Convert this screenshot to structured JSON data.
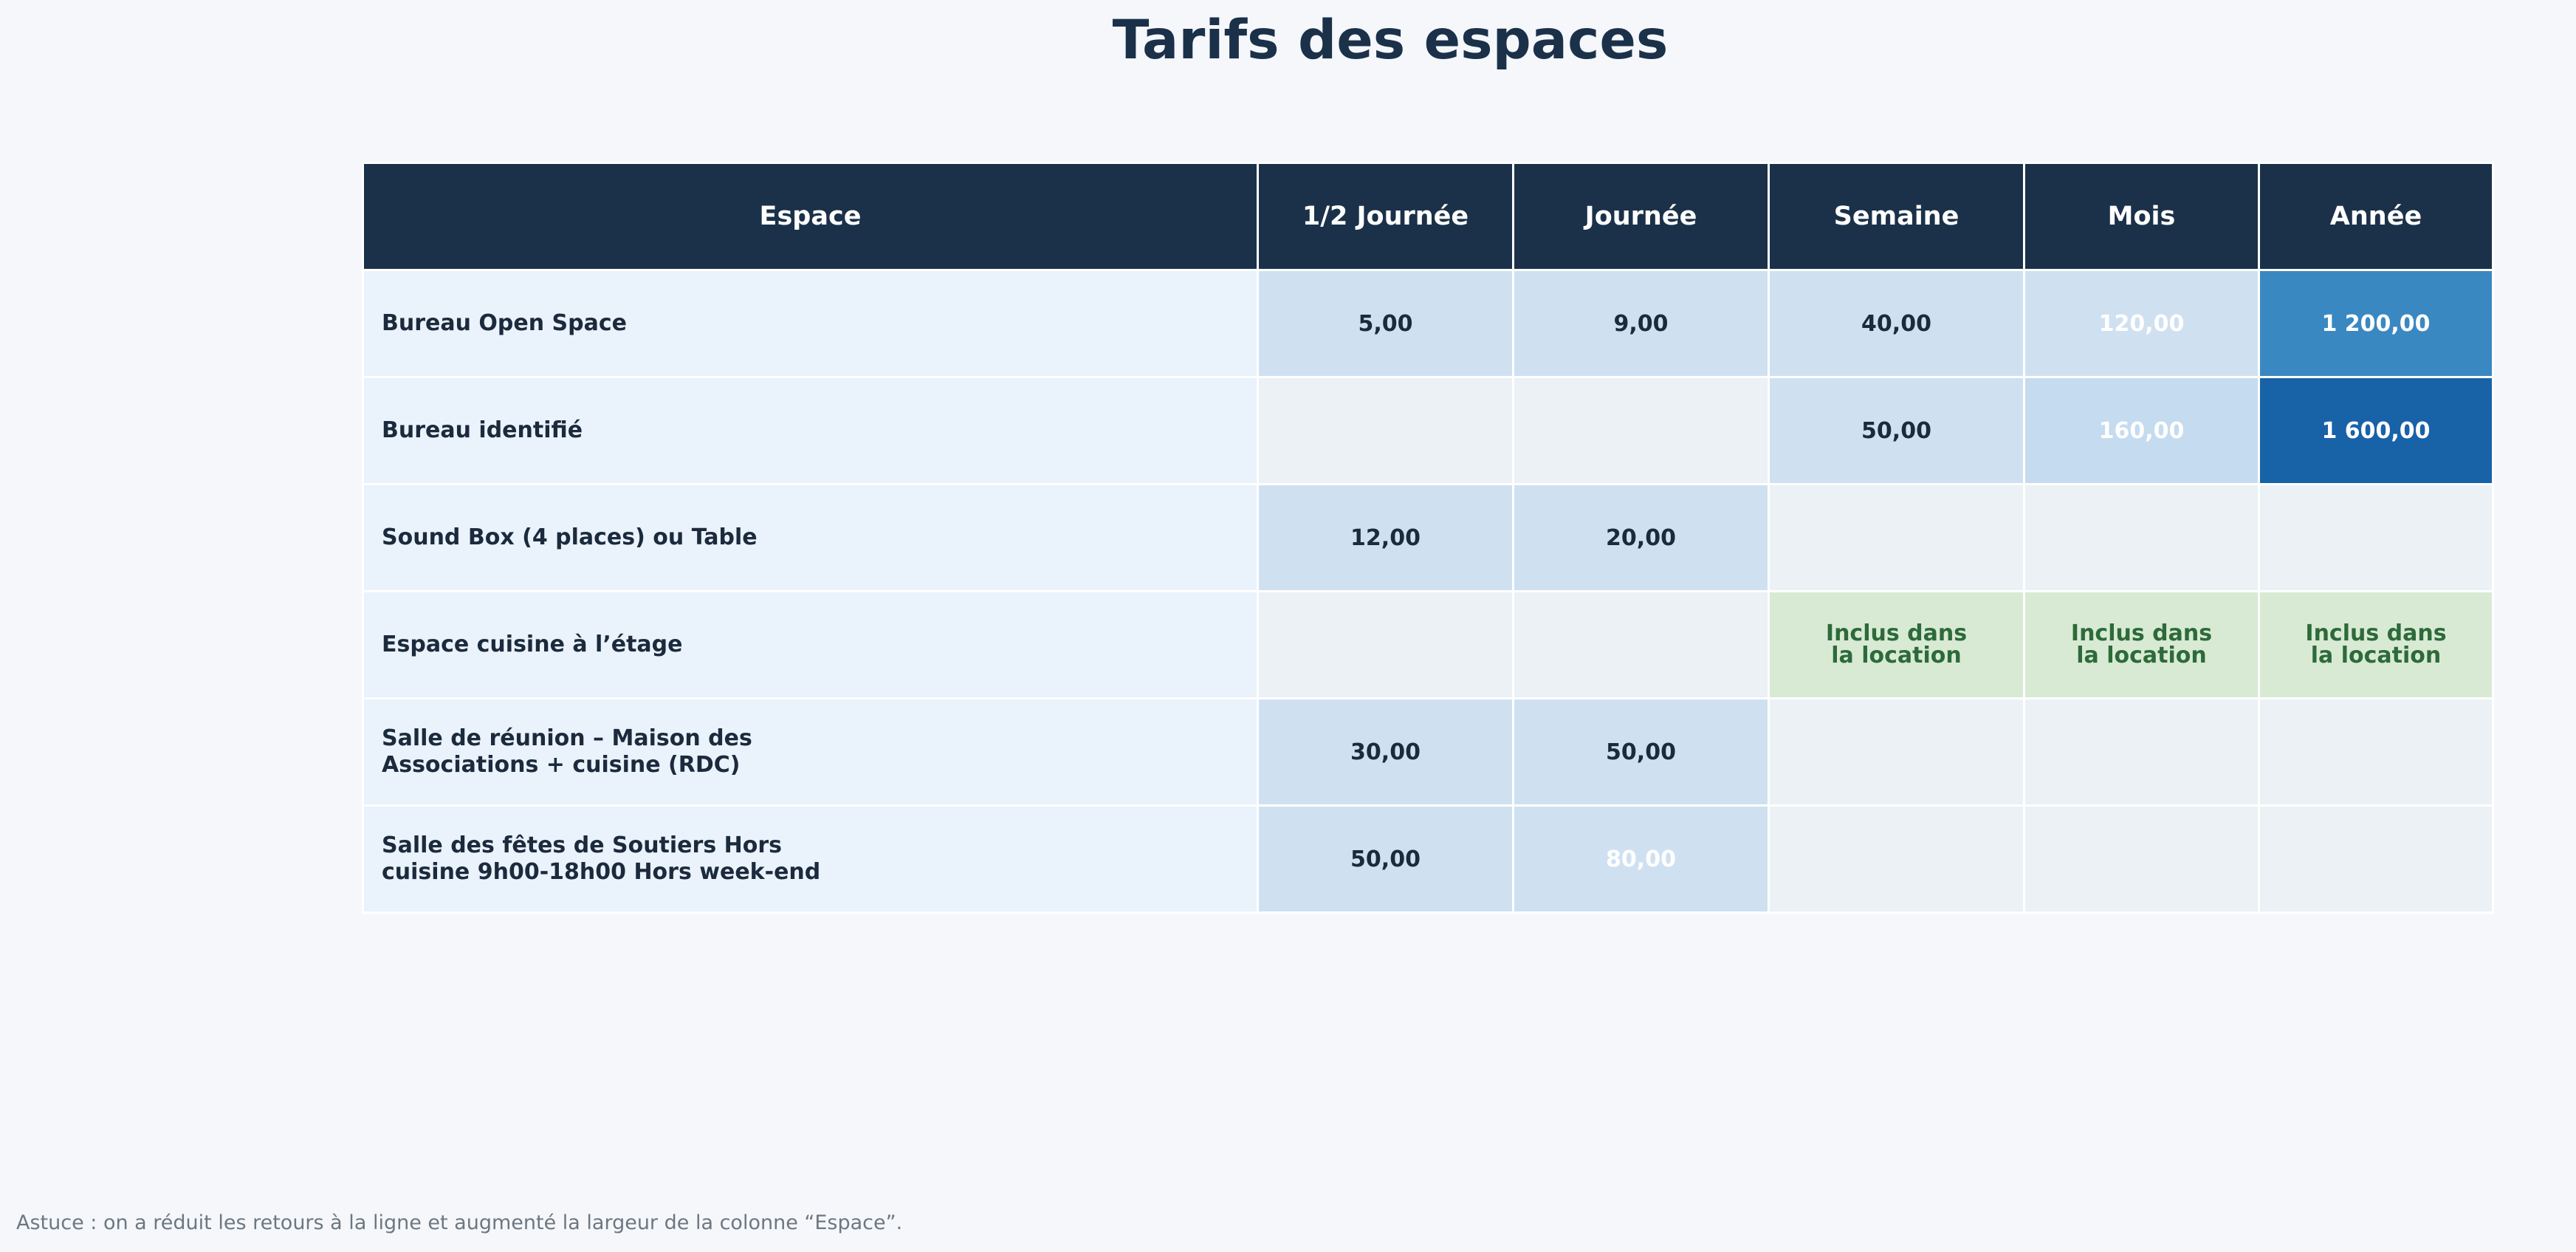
{
  "title": "Tarifs des espaces",
  "footnote": "Astuce : on a réduit les retours à la ligne et augmenté la largeur de la colonne “Espace”.",
  "colors": {
    "header_bg": "#1b3149",
    "label_bg": "#eaf2fb",
    "empty_bg": "#ebf1f5",
    "included_bg": "#d8ead4",
    "included_text": "#2d6a3a",
    "dark_text": "#1b2a3c"
  },
  "chart_data": {
    "type": "table",
    "title": "Tarifs des espaces",
    "columns": [
      "Espace",
      "1/2 Journée",
      "Journée",
      "Semaine",
      "Mois",
      "Année"
    ],
    "rows": [
      {
        "label": "Bureau Open Space",
        "cells": [
          {
            "text": "5,00",
            "bg": "#cfe1f1",
            "fg": "#1b2a3c"
          },
          {
            "text": "9,00",
            "bg": "#cfe1f1",
            "fg": "#1b2a3c"
          },
          {
            "text": "40,00",
            "bg": "#cfe1f1",
            "fg": "#1b2a3c"
          },
          {
            "text": "120,00",
            "bg": "#cfe1f1",
            "fg": "#ffffff"
          },
          {
            "text": "1 200,00",
            "bg": "#3a88c1",
            "fg": "#ffffff"
          }
        ]
      },
      {
        "label": "Bureau identifié",
        "cells": [
          {
            "text": "",
            "bg": "#ebf1f5",
            "fg": "#1b2a3c"
          },
          {
            "text": "",
            "bg": "#ebf1f5",
            "fg": "#1b2a3c"
          },
          {
            "text": "50,00",
            "bg": "#cfe1f1",
            "fg": "#1b2a3c"
          },
          {
            "text": "160,00",
            "bg": "#c5dbef",
            "fg": "#ffffff"
          },
          {
            "text": "1 600,00",
            "bg": "#1862a8",
            "fg": "#ffffff"
          }
        ]
      },
      {
        "label": "Sound Box (4 places) ou Table",
        "cells": [
          {
            "text": "12,00",
            "bg": "#cfe1f1",
            "fg": "#1b2a3c"
          },
          {
            "text": "20,00",
            "bg": "#cfe1f1",
            "fg": "#1b2a3c"
          },
          {
            "text": "",
            "bg": "#ebf1f5",
            "fg": "#1b2a3c"
          },
          {
            "text": "",
            "bg": "#ebf1f5",
            "fg": "#1b2a3c"
          },
          {
            "text": "",
            "bg": "#ebf1f5",
            "fg": "#1b2a3c"
          }
        ]
      },
      {
        "label": "Espace cuisine à l’étage",
        "cells": [
          {
            "text": "",
            "bg": "#ebf1f5",
            "fg": "#1b2a3c"
          },
          {
            "text": "",
            "bg": "#ebf1f5",
            "fg": "#1b2a3c"
          },
          {
            "text": "Inclus dans la location",
            "bg": "#d8ead4",
            "fg": "#2d6a3a",
            "included": true
          },
          {
            "text": "Inclus dans la location",
            "bg": "#d8ead4",
            "fg": "#2d6a3a",
            "included": true
          },
          {
            "text": "Inclus dans la location",
            "bg": "#d8ead4",
            "fg": "#2d6a3a",
            "included": true
          }
        ]
      },
      {
        "label": "Salle de réunion – Maison des Associations + cuisine (RDC)",
        "cells": [
          {
            "text": "30,00",
            "bg": "#cfe1f1",
            "fg": "#1b2a3c"
          },
          {
            "text": "50,00",
            "bg": "#cfe1f1",
            "fg": "#1b2a3c"
          },
          {
            "text": "",
            "bg": "#ebf1f5",
            "fg": "#1b2a3c"
          },
          {
            "text": "",
            "bg": "#ebf1f5",
            "fg": "#1b2a3c"
          },
          {
            "text": "",
            "bg": "#ebf1f5",
            "fg": "#1b2a3c"
          }
        ]
      },
      {
        "label": "Salle des fêtes de Soutiers Hors cuisine 9h00-18h00 Hors week-end",
        "cells": [
          {
            "text": "50,00",
            "bg": "#cfe1f1",
            "fg": "#1b2a3c"
          },
          {
            "text": "80,00",
            "bg": "#cfe1f1",
            "fg": "#ffffff"
          },
          {
            "text": "",
            "bg": "#ebf1f5",
            "fg": "#1b2a3c"
          },
          {
            "text": "",
            "bg": "#ebf1f5",
            "fg": "#1b2a3c"
          },
          {
            "text": "",
            "bg": "#ebf1f5",
            "fg": "#1b2a3c"
          }
        ]
      }
    ]
  }
}
